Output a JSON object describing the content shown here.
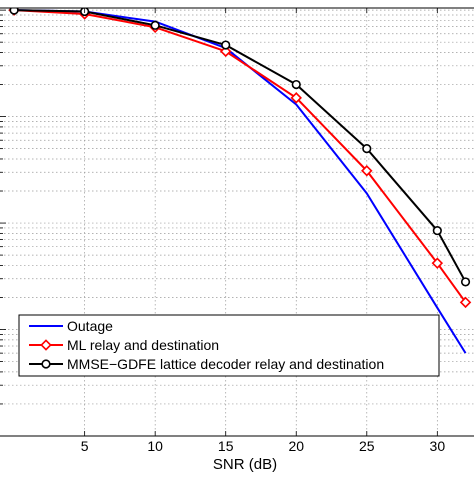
{
  "chart_data": {
    "type": "line",
    "title": "",
    "xlabel": "SNR (dB)",
    "ylabel": "",
    "yscale": "log",
    "ylim": [
      0.0001,
      1
    ],
    "grid": true,
    "x_ticks": [
      5,
      10,
      15,
      20,
      25,
      30
    ],
    "x_tick_labels": [
      "5",
      "10",
      "15",
      "20",
      "25",
      "30"
    ],
    "legend_position": "bottom-left",
    "series": [
      {
        "name": "Outage",
        "color": "#0000ff",
        "marker": "none",
        "x": [
          0,
          5,
          10,
          15,
          20,
          25,
          30,
          32
        ],
        "y": [
          1,
          0.97,
          0.78,
          0.44,
          0.13,
          0.019,
          0.0016,
          0.0006
        ]
      },
      {
        "name": "ML relay and destination",
        "color": "#ff0000",
        "marker": "diamond",
        "x": [
          0,
          5,
          10,
          15,
          20,
          25,
          30,
          32
        ],
        "y": [
          1,
          0.92,
          0.69,
          0.41,
          0.15,
          0.031,
          0.0042,
          0.0018
        ]
      },
      {
        "name": "MMSE−GDFE lattice decoder relay and destination",
        "color": "#000000",
        "marker": "circle",
        "x": [
          0,
          5,
          10,
          15,
          20,
          25,
          30,
          32
        ],
        "y": [
          1,
          0.97,
          0.72,
          0.47,
          0.2,
          0.05,
          0.0085,
          0.0028
        ]
      }
    ]
  }
}
